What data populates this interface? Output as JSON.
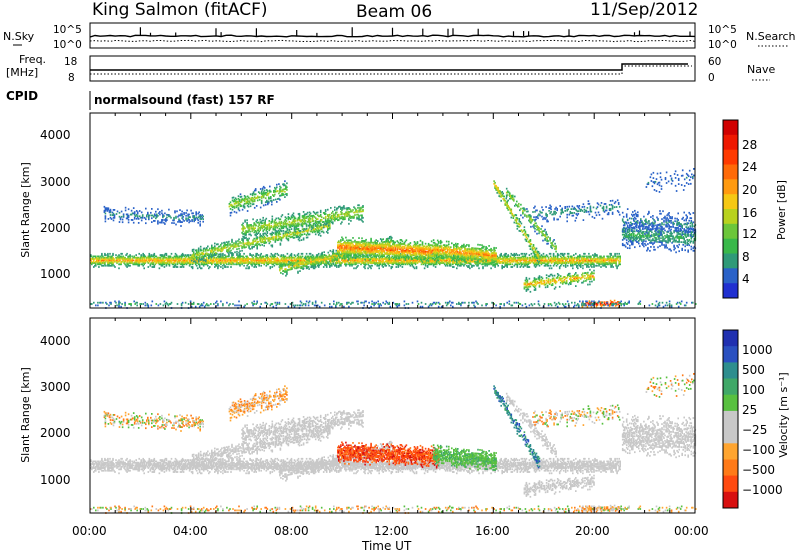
{
  "header": {
    "title": "King Salmon (fitACF)",
    "beam": "Beam 06",
    "date": "11/Sep/2012"
  },
  "strips": {
    "nsky_label": "N.Sky",
    "nsearch_label": "N.Search",
    "noise_ticks": [
      "10^5",
      "10^0"
    ],
    "freq_label": "Freq.",
    "freq_unit": "[MHz]",
    "freq_ticks": [
      "18",
      "8"
    ],
    "nave_label": "Nave",
    "nave_ticks": [
      "60",
      "0"
    ],
    "cpid_label": "CPID",
    "cpid_value": "normalsound (fast) 157 RF"
  },
  "axes": {
    "ylabel": "Slant Range [km]",
    "yticks": [
      "4000",
      "3000",
      "2000",
      "1000"
    ],
    "xticks": [
      "00:00",
      "04:00",
      "08:00",
      "12:00",
      "16:00",
      "20:00",
      "00:00"
    ],
    "xlabel": "Time UT"
  },
  "colors": {
    "power": [
      "#2030d0",
      "#2a62c8",
      "#2f9a78",
      "#39b84a",
      "#6cc63a",
      "#b8d21e",
      "#f5c814",
      "#ff9a10",
      "#ff6a08",
      "#ff3a00",
      "#ee1800",
      "#d00000"
    ],
    "velocity": [
      "#d81010",
      "#ff4a10",
      "#ff7a18",
      "#ffa530",
      "#c8c8c8",
      "#c8c8c8",
      "#58c040",
      "#40a868",
      "#2e8e8e",
      "#2a50c0",
      "#2030b0"
    ]
  },
  "chart_data": [
    {
      "type": "heatmap",
      "name": "power",
      "xlabel": "Time UT",
      "ylabel": "Slant Range [km]",
      "xlim": [
        0,
        24
      ],
      "ylim": [
        180,
        4600
      ],
      "colorbar": {
        "label": "Power [dB]",
        "range": [
          0,
          32
        ],
        "ticks": [
          "28",
          "24",
          "20",
          "16",
          "12",
          "8",
          "4"
        ]
      }
    },
    {
      "type": "heatmap",
      "name": "velocity",
      "xlabel": "Time UT",
      "ylabel": "Slant Range [km]",
      "xlim": [
        0,
        24
      ],
      "ylim": [
        180,
        4600
      ],
      "colorbar": {
        "label": "Velocity [m s⁻¹]",
        "ticks": [
          "1000",
          "500",
          "100",
          "25",
          "−25",
          "−100",
          "−500",
          "−1000"
        ]
      }
    }
  ]
}
